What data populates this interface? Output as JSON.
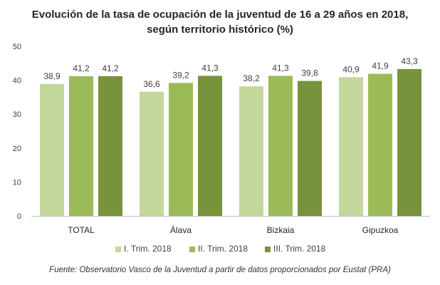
{
  "chart_data": {
    "type": "bar",
    "title_line1": "Evolución de la tasa de ocupación  de la juventud de 16 a 29 años en 2018,",
    "title_line2": "según territorio histórico (%)",
    "categories": [
      "TOTAL",
      "Álava",
      "Bizkaia",
      "Gipuzkoa"
    ],
    "series": [
      {
        "name": "I. Trim. 2018",
        "values": [
          38.9,
          36.6,
          38.2,
          40.9
        ],
        "color": "#c4d79b"
      },
      {
        "name": "II. Trim. 2018",
        "values": [
          41.2,
          39.2,
          41.3,
          41.9
        ],
        "color": "#9bbb59"
      },
      {
        "name": "III. Trim. 2018",
        "values": [
          41.2,
          41.3,
          39.8,
          43.3
        ],
        "color": "#77933c"
      }
    ],
    "value_labels": [
      [
        "38,9",
        "36,6",
        "38,2",
        "40,9"
      ],
      [
        "41,2",
        "39,2",
        "41,3",
        "41,9"
      ],
      [
        "41,2",
        "41,3",
        "39,8",
        "43,3"
      ]
    ],
    "ylim": [
      0,
      50
    ],
    "yticks": [
      0,
      10,
      20,
      30,
      40,
      50
    ],
    "grid": false,
    "legend_position": "bottom",
    "xlabel": "",
    "ylabel": ""
  },
  "source": "Fuente: Observatorio Vasco de la Juventud a partir de datos proporcionados por Eustat (PRA)"
}
